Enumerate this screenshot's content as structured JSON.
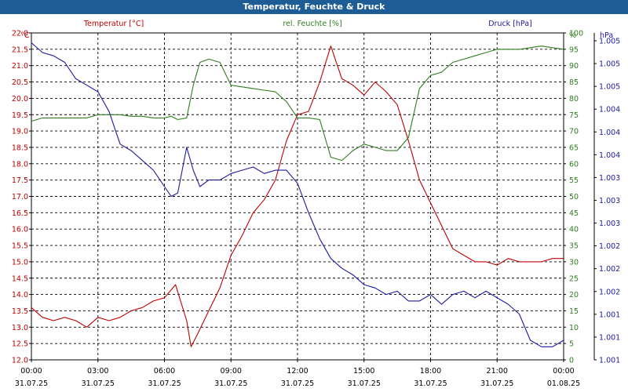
{
  "window": {
    "title": "Temperatur, Feuchte & Druck"
  },
  "chart_data": {
    "type": "line",
    "title": "Temperatur, Feuchte & Druck",
    "x_tick_labels": [
      {
        "time": "00:00",
        "date": "31.07.25"
      },
      {
        "time": "03:00",
        "date": "31.07.25"
      },
      {
        "time": "06:00",
        "date": "31.07.25"
      },
      {
        "time": "09:00",
        "date": "31.07.25"
      },
      {
        "time": "12:00",
        "date": "31.07.25"
      },
      {
        "time": "15:00",
        "date": "31.07.25"
      },
      {
        "time": "18:00",
        "date": "31.07.25"
      },
      {
        "time": "21:00",
        "date": "31.07.25"
      },
      {
        "time": "00:00",
        "date": "01.08.25"
      }
    ],
    "xlim": [
      0,
      24
    ],
    "axes": {
      "temp": {
        "label": "Temperatur [°C]",
        "unit": "°C",
        "color": "#c00000",
        "ylim": [
          12.0,
          22.0
        ],
        "step": 0.5,
        "decimals": 1
      },
      "hum": {
        "label": "rel. Feuchte [%]",
        "unit": "%",
        "color": "#2e7d1e",
        "ylim": [
          0,
          100
        ],
        "step": 5,
        "decimals": 0
      },
      "press": {
        "label": "Druck [hPa]",
        "unit": "hPa",
        "color": "#1a1aa0",
        "tick_labels": [
          "1.001",
          "1.001",
          "1.001",
          "1.002",
          "1.002",
          "1.002",
          "1.003",
          "1.003",
          "1.003",
          "1.004",
          "1.004",
          "1.004",
          "1.005",
          "1.005",
          "1.005"
        ]
      }
    },
    "series": [
      {
        "name": "Temperatur",
        "axis": "temp",
        "color": "#c00000",
        "x": [
          0,
          0.5,
          1,
          1.5,
          2,
          2.5,
          3,
          3.5,
          4,
          4.5,
          5,
          5.5,
          6,
          6.5,
          7,
          7.2,
          7.5,
          8,
          8.5,
          9,
          9.5,
          10,
          10.5,
          11,
          11.5,
          12,
          12.5,
          13,
          13.5,
          14,
          14.5,
          15,
          15.5,
          16,
          16.5,
          17,
          17.5,
          18,
          18.5,
          19,
          19.5,
          20,
          20.5,
          21,
          21.5,
          22,
          22.5,
          23,
          23.5,
          24
        ],
        "values": [
          13.6,
          13.3,
          13.2,
          13.3,
          13.2,
          13.0,
          13.3,
          13.2,
          13.3,
          13.5,
          13.6,
          13.8,
          13.9,
          14.3,
          13.2,
          12.4,
          12.8,
          13.5,
          14.2,
          15.2,
          15.8,
          16.5,
          16.9,
          17.5,
          18.7,
          19.5,
          19.6,
          20.5,
          21.6,
          20.6,
          20.4,
          20.1,
          20.5,
          20.2,
          19.8,
          18.7,
          17.5,
          16.8,
          16.1,
          15.4,
          15.2,
          15.0,
          15.0,
          14.9,
          15.1,
          15.0,
          15.0,
          15.0,
          15.1,
          15.1
        ]
      },
      {
        "name": "rel. Feuchte",
        "axis": "hum",
        "color": "#2e7d1e",
        "x": [
          0,
          0.5,
          1,
          1.5,
          2,
          2.5,
          3,
          3.5,
          4,
          4.5,
          5,
          5.5,
          6,
          6.3,
          6.6,
          7,
          7.3,
          7.6,
          8,
          8.5,
          9,
          9.5,
          10,
          10.5,
          11,
          11.5,
          12,
          12.5,
          13,
          13.5,
          14,
          14.5,
          15,
          15.5,
          16,
          16.5,
          17,
          17.5,
          18,
          18.5,
          19,
          19.5,
          20,
          20.5,
          21,
          21.5,
          22,
          22.5,
          23,
          23.5,
          24
        ],
        "values": [
          73,
          74,
          74,
          74,
          74,
          74,
          75,
          75,
          75,
          74.5,
          74.5,
          74,
          74,
          74.5,
          73.5,
          74,
          84,
          91,
          92,
          91,
          84,
          83.5,
          83,
          82.5,
          82,
          79,
          74,
          74,
          73.5,
          62,
          61,
          64,
          66,
          65,
          64,
          64,
          68,
          83,
          87,
          88,
          91,
          92,
          93,
          94,
          95,
          95,
          95,
          95.5,
          96,
          95.5,
          95
        ]
      },
      {
        "name": "Druck",
        "axis": "press",
        "color": "#1a1aa0",
        "x": [
          0,
          0.5,
          1,
          1.5,
          2,
          2.5,
          3,
          3.5,
          4,
          4.5,
          5,
          5.5,
          6,
          6.3,
          6.6,
          7,
          7.3,
          7.6,
          8,
          8.5,
          9,
          9.5,
          10,
          10.5,
          11,
          11.5,
          12,
          12.5,
          13,
          13.5,
          14,
          14.5,
          15,
          15.5,
          16,
          16.5,
          17,
          17.5,
          18,
          18.5,
          19,
          19.5,
          20,
          20.5,
          21,
          21.5,
          22,
          22.5,
          23,
          23.5,
          24
        ],
        "values": [
          97,
          94,
          93,
          91,
          86,
          84,
          82,
          76,
          66,
          64,
          61,
          58,
          53,
          50,
          51,
          65,
          58,
          53,
          55,
          55,
          57,
          58,
          59,
          57,
          58,
          58,
          54,
          45,
          37,
          31,
          28,
          26,
          23,
          22,
          20,
          21,
          18,
          18,
          20,
          17,
          20,
          21,
          19,
          21,
          19,
          17,
          14,
          6,
          4,
          4,
          6
        ]
      }
    ]
  }
}
